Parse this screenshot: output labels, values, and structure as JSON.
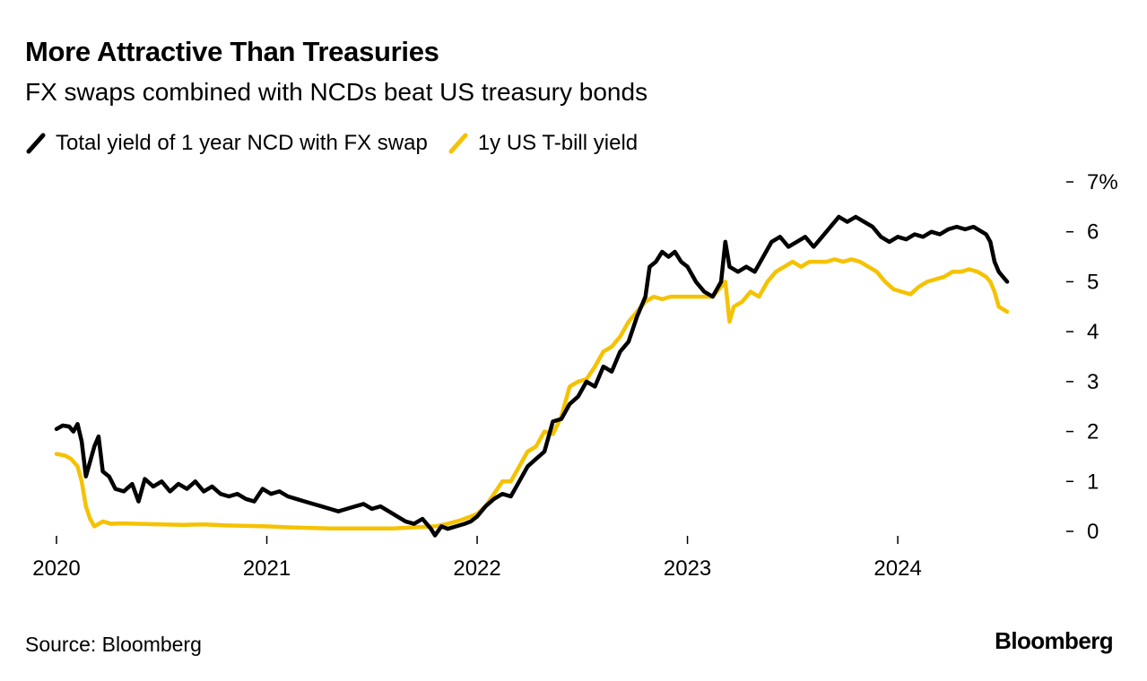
{
  "header": {
    "title": "More Attractive Than Treasuries",
    "subtitle": "FX swaps combined with NCDs beat US treasury bonds"
  },
  "legend": [
    {
      "label": "Total yield of 1 year NCD with FX swap",
      "color": "#000000"
    },
    {
      "label": "1y US T-bill yield",
      "color": "#f5c200"
    }
  ],
  "footer": {
    "source": "Source: Bloomberg",
    "brand": "Bloomberg"
  },
  "chart_data": {
    "type": "line",
    "title": "More Attractive Than Treasuries",
    "subtitle": "FX swaps combined with NCDs beat US treasury bonds",
    "xlabel": "",
    "ylabel": "",
    "xlim": [
      2020.0,
      2024.75
    ],
    "ylim": [
      0,
      7
    ],
    "x_ticks": [
      {
        "value": 2020,
        "label": "2020"
      },
      {
        "value": 2021,
        "label": "2021"
      },
      {
        "value": 2022,
        "label": "2022"
      },
      {
        "value": 2023,
        "label": "2023"
      },
      {
        "value": 2024,
        "label": "2024"
      }
    ],
    "y_ticks": [
      {
        "value": 0,
        "label": "0"
      },
      {
        "value": 1,
        "label": "1"
      },
      {
        "value": 2,
        "label": "2"
      },
      {
        "value": 3,
        "label": "3"
      },
      {
        "value": 4,
        "label": "4"
      },
      {
        "value": 5,
        "label": "5"
      },
      {
        "value": 6,
        "label": "6"
      },
      {
        "value": 7,
        "label": "7%"
      }
    ],
    "grid": false,
    "legend_position": "top-left",
    "series": [
      {
        "name": "Total yield of 1 year NCD with FX swap",
        "color": "#000000",
        "points": [
          [
            2020.0,
            2.05
          ],
          [
            2020.03,
            2.12
          ],
          [
            2020.06,
            2.1
          ],
          [
            2020.08,
            2.0
          ],
          [
            2020.1,
            2.15
          ],
          [
            2020.12,
            1.8
          ],
          [
            2020.14,
            1.1
          ],
          [
            2020.16,
            1.4
          ],
          [
            2020.18,
            1.7
          ],
          [
            2020.2,
            1.9
          ],
          [
            2020.22,
            1.2
          ],
          [
            2020.25,
            1.1
          ],
          [
            2020.28,
            0.85
          ],
          [
            2020.32,
            0.8
          ],
          [
            2020.36,
            0.95
          ],
          [
            2020.39,
            0.6
          ],
          [
            2020.42,
            1.05
          ],
          [
            2020.46,
            0.9
          ],
          [
            2020.5,
            1.0
          ],
          [
            2020.54,
            0.8
          ],
          [
            2020.58,
            0.95
          ],
          [
            2020.62,
            0.85
          ],
          [
            2020.66,
            1.0
          ],
          [
            2020.7,
            0.8
          ],
          [
            2020.74,
            0.9
          ],
          [
            2020.78,
            0.75
          ],
          [
            2020.82,
            0.7
          ],
          [
            2020.86,
            0.75
          ],
          [
            2020.9,
            0.65
          ],
          [
            2020.94,
            0.6
          ],
          [
            2020.98,
            0.85
          ],
          [
            2021.02,
            0.75
          ],
          [
            2021.06,
            0.8
          ],
          [
            2021.1,
            0.7
          ],
          [
            2021.14,
            0.65
          ],
          [
            2021.18,
            0.6
          ],
          [
            2021.22,
            0.55
          ],
          [
            2021.26,
            0.5
          ],
          [
            2021.3,
            0.45
          ],
          [
            2021.34,
            0.4
          ],
          [
            2021.38,
            0.45
          ],
          [
            2021.42,
            0.5
          ],
          [
            2021.46,
            0.55
          ],
          [
            2021.5,
            0.45
          ],
          [
            2021.54,
            0.5
          ],
          [
            2021.58,
            0.4
          ],
          [
            2021.62,
            0.3
          ],
          [
            2021.66,
            0.2
          ],
          [
            2021.7,
            0.15
          ],
          [
            2021.74,
            0.25
          ],
          [
            2021.78,
            0.05
          ],
          [
            2021.8,
            -0.08
          ],
          [
            2021.83,
            0.1
          ],
          [
            2021.86,
            0.05
          ],
          [
            2021.9,
            0.1
          ],
          [
            2021.94,
            0.15
          ],
          [
            2021.97,
            0.2
          ],
          [
            2022.0,
            0.3
          ],
          [
            2022.04,
            0.5
          ],
          [
            2022.08,
            0.65
          ],
          [
            2022.12,
            0.75
          ],
          [
            2022.16,
            0.7
          ],
          [
            2022.2,
            1.0
          ],
          [
            2022.24,
            1.3
          ],
          [
            2022.28,
            1.45
          ],
          [
            2022.32,
            1.6
          ],
          [
            2022.36,
            2.2
          ],
          [
            2022.4,
            2.25
          ],
          [
            2022.44,
            2.55
          ],
          [
            2022.48,
            2.7
          ],
          [
            2022.52,
            3.0
          ],
          [
            2022.56,
            2.9
          ],
          [
            2022.6,
            3.3
          ],
          [
            2022.64,
            3.2
          ],
          [
            2022.68,
            3.6
          ],
          [
            2022.72,
            3.8
          ],
          [
            2022.76,
            4.3
          ],
          [
            2022.78,
            4.5
          ],
          [
            2022.8,
            4.7
          ],
          [
            2022.82,
            5.3
          ],
          [
            2022.85,
            5.4
          ],
          [
            2022.88,
            5.6
          ],
          [
            2022.91,
            5.5
          ],
          [
            2022.94,
            5.6
          ],
          [
            2022.97,
            5.4
          ],
          [
            2023.0,
            5.3
          ],
          [
            2023.04,
            5.0
          ],
          [
            2023.08,
            4.8
          ],
          [
            2023.12,
            4.7
          ],
          [
            2023.16,
            5.0
          ],
          [
            2023.18,
            5.8
          ],
          [
            2023.2,
            5.3
          ],
          [
            2023.24,
            5.2
          ],
          [
            2023.28,
            5.3
          ],
          [
            2023.32,
            5.2
          ],
          [
            2023.36,
            5.5
          ],
          [
            2023.4,
            5.8
          ],
          [
            2023.44,
            5.9
          ],
          [
            2023.48,
            5.7
          ],
          [
            2023.52,
            5.8
          ],
          [
            2023.56,
            5.9
          ],
          [
            2023.6,
            5.7
          ],
          [
            2023.64,
            5.9
          ],
          [
            2023.68,
            6.1
          ],
          [
            2023.72,
            6.3
          ],
          [
            2023.76,
            6.2
          ],
          [
            2023.8,
            6.3
          ],
          [
            2023.84,
            6.2
          ],
          [
            2023.88,
            6.1
          ],
          [
            2023.92,
            5.9
          ],
          [
            2023.96,
            5.8
          ],
          [
            2024.0,
            5.9
          ],
          [
            2024.04,
            5.85
          ],
          [
            2024.08,
            5.95
          ],
          [
            2024.12,
            5.9
          ],
          [
            2024.16,
            6.0
          ],
          [
            2024.2,
            5.95
          ],
          [
            2024.24,
            6.05
          ],
          [
            2024.28,
            6.1
          ],
          [
            2024.32,
            6.05
          ],
          [
            2024.36,
            6.1
          ],
          [
            2024.4,
            6.0
          ],
          [
            2024.42,
            5.95
          ],
          [
            2024.44,
            5.8
          ],
          [
            2024.46,
            5.4
          ],
          [
            2024.48,
            5.2
          ],
          [
            2024.5,
            5.1
          ],
          [
            2024.52,
            5.0
          ]
        ]
      },
      {
        "name": "1y US T-bill yield",
        "color": "#f5c200",
        "points": [
          [
            2020.0,
            1.55
          ],
          [
            2020.04,
            1.52
          ],
          [
            2020.07,
            1.45
          ],
          [
            2020.1,
            1.3
          ],
          [
            2020.12,
            1.0
          ],
          [
            2020.14,
            0.5
          ],
          [
            2020.16,
            0.25
          ],
          [
            2020.18,
            0.1
          ],
          [
            2020.22,
            0.2
          ],
          [
            2020.26,
            0.15
          ],
          [
            2020.3,
            0.16
          ],
          [
            2020.4,
            0.15
          ],
          [
            2020.5,
            0.14
          ],
          [
            2020.6,
            0.13
          ],
          [
            2020.7,
            0.14
          ],
          [
            2020.8,
            0.12
          ],
          [
            2020.9,
            0.11
          ],
          [
            2021.0,
            0.1
          ],
          [
            2021.1,
            0.08
          ],
          [
            2021.2,
            0.07
          ],
          [
            2021.3,
            0.06
          ],
          [
            2021.4,
            0.06
          ],
          [
            2021.5,
            0.06
          ],
          [
            2021.6,
            0.06
          ],
          [
            2021.7,
            0.08
          ],
          [
            2021.8,
            0.1
          ],
          [
            2021.86,
            0.15
          ],
          [
            2021.92,
            0.22
          ],
          [
            2021.97,
            0.3
          ],
          [
            2022.0,
            0.35
          ],
          [
            2022.04,
            0.5
          ],
          [
            2022.08,
            0.75
          ],
          [
            2022.12,
            1.0
          ],
          [
            2022.16,
            1.0
          ],
          [
            2022.2,
            1.3
          ],
          [
            2022.24,
            1.6
          ],
          [
            2022.28,
            1.7
          ],
          [
            2022.32,
            2.0
          ],
          [
            2022.36,
            1.95
          ],
          [
            2022.4,
            2.3
          ],
          [
            2022.44,
            2.9
          ],
          [
            2022.48,
            3.0
          ],
          [
            2022.52,
            3.05
          ],
          [
            2022.56,
            3.3
          ],
          [
            2022.6,
            3.6
          ],
          [
            2022.64,
            3.7
          ],
          [
            2022.68,
            3.9
          ],
          [
            2022.72,
            4.2
          ],
          [
            2022.76,
            4.4
          ],
          [
            2022.8,
            4.6
          ],
          [
            2022.84,
            4.7
          ],
          [
            2022.88,
            4.65
          ],
          [
            2022.92,
            4.7
          ],
          [
            2022.96,
            4.7
          ],
          [
            2023.0,
            4.7
          ],
          [
            2023.06,
            4.7
          ],
          [
            2023.12,
            4.7
          ],
          [
            2023.16,
            4.9
          ],
          [
            2023.18,
            5.0
          ],
          [
            2023.2,
            4.2
          ],
          [
            2023.22,
            4.5
          ],
          [
            2023.26,
            4.6
          ],
          [
            2023.3,
            4.8
          ],
          [
            2023.34,
            4.7
          ],
          [
            2023.38,
            5.0
          ],
          [
            2023.42,
            5.2
          ],
          [
            2023.46,
            5.3
          ],
          [
            2023.5,
            5.4
          ],
          [
            2023.54,
            5.3
          ],
          [
            2023.58,
            5.4
          ],
          [
            2023.62,
            5.4
          ],
          [
            2023.66,
            5.4
          ],
          [
            2023.7,
            5.45
          ],
          [
            2023.74,
            5.4
          ],
          [
            2023.78,
            5.45
          ],
          [
            2023.82,
            5.4
          ],
          [
            2023.86,
            5.3
          ],
          [
            2023.9,
            5.2
          ],
          [
            2023.94,
            5.0
          ],
          [
            2023.98,
            4.85
          ],
          [
            2024.02,
            4.8
          ],
          [
            2024.06,
            4.75
          ],
          [
            2024.1,
            4.9
          ],
          [
            2024.14,
            5.0
          ],
          [
            2024.18,
            5.05
          ],
          [
            2024.22,
            5.1
          ],
          [
            2024.26,
            5.2
          ],
          [
            2024.3,
            5.2
          ],
          [
            2024.34,
            5.25
          ],
          [
            2024.38,
            5.2
          ],
          [
            2024.42,
            5.1
          ],
          [
            2024.44,
            5.0
          ],
          [
            2024.46,
            4.8
          ],
          [
            2024.48,
            4.5
          ],
          [
            2024.5,
            4.45
          ],
          [
            2024.52,
            4.4
          ]
        ]
      }
    ]
  }
}
